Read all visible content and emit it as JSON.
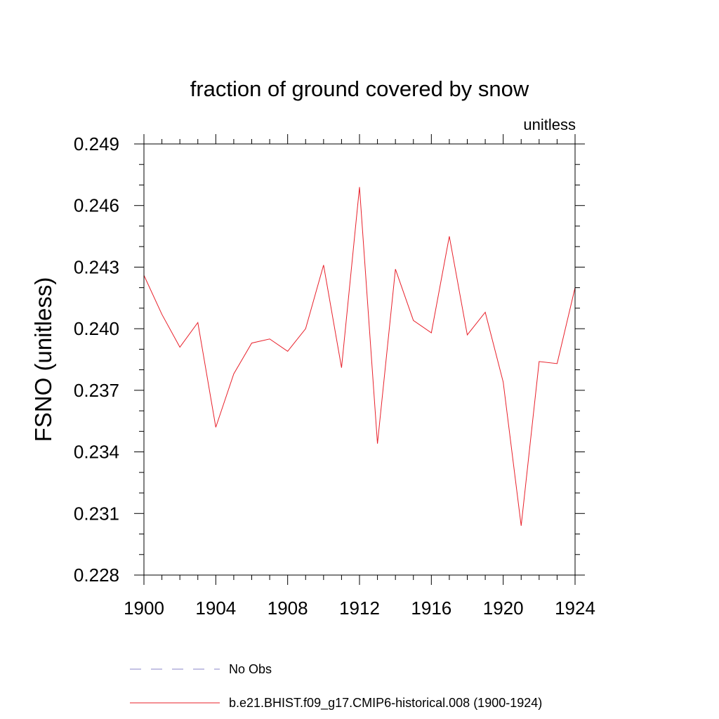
{
  "chart_data": {
    "type": "line",
    "title": "fraction of ground covered by snow",
    "units_label": "unitless",
    "ylabel": "FSNO  (unitless)",
    "xlabel": "",
    "xlim": [
      1900,
      1924
    ],
    "ylim": [
      0.228,
      0.249
    ],
    "x_ticks": [
      1900,
      1904,
      1908,
      1912,
      1916,
      1920,
      1924
    ],
    "x_tick_labels": [
      "1900",
      "1904",
      "1908",
      "1912",
      "1916",
      "1920",
      "1924"
    ],
    "y_ticks": [
      0.228,
      0.231,
      0.234,
      0.237,
      0.24,
      0.243,
      0.246,
      0.249
    ],
    "y_tick_labels": [
      "0.228",
      "0.231",
      "0.234",
      "0.237",
      "0.240",
      "0.243",
      "0.246",
      "0.249"
    ],
    "grid": false,
    "legend_position": "bottom",
    "series": [
      {
        "name": "No Obs",
        "color": "#8a84c8",
        "style": "dashed",
        "x": [],
        "values": []
      },
      {
        "name": "b.e21.BHIST.f09_g17.CMIP6-historical.008 (1900-1924)",
        "color": "#e8202a",
        "style": "solid",
        "x": [
          1900,
          1901,
          1902,
          1903,
          1904,
          1905,
          1906,
          1907,
          1908,
          1909,
          1910,
          1911,
          1912,
          1913,
          1914,
          1915,
          1916,
          1917,
          1918,
          1919,
          1920,
          1921,
          1922,
          1923,
          1924
        ],
        "values": [
          0.2426,
          0.2407,
          0.2391,
          0.2403,
          0.2352,
          0.2378,
          0.2393,
          0.2395,
          0.2389,
          0.24,
          0.2431,
          0.2381,
          0.2469,
          0.2344,
          0.2429,
          0.2404,
          0.2398,
          0.2445,
          0.2397,
          0.2408,
          0.2374,
          0.2304,
          0.2384,
          0.2383,
          0.242
        ]
      }
    ]
  }
}
